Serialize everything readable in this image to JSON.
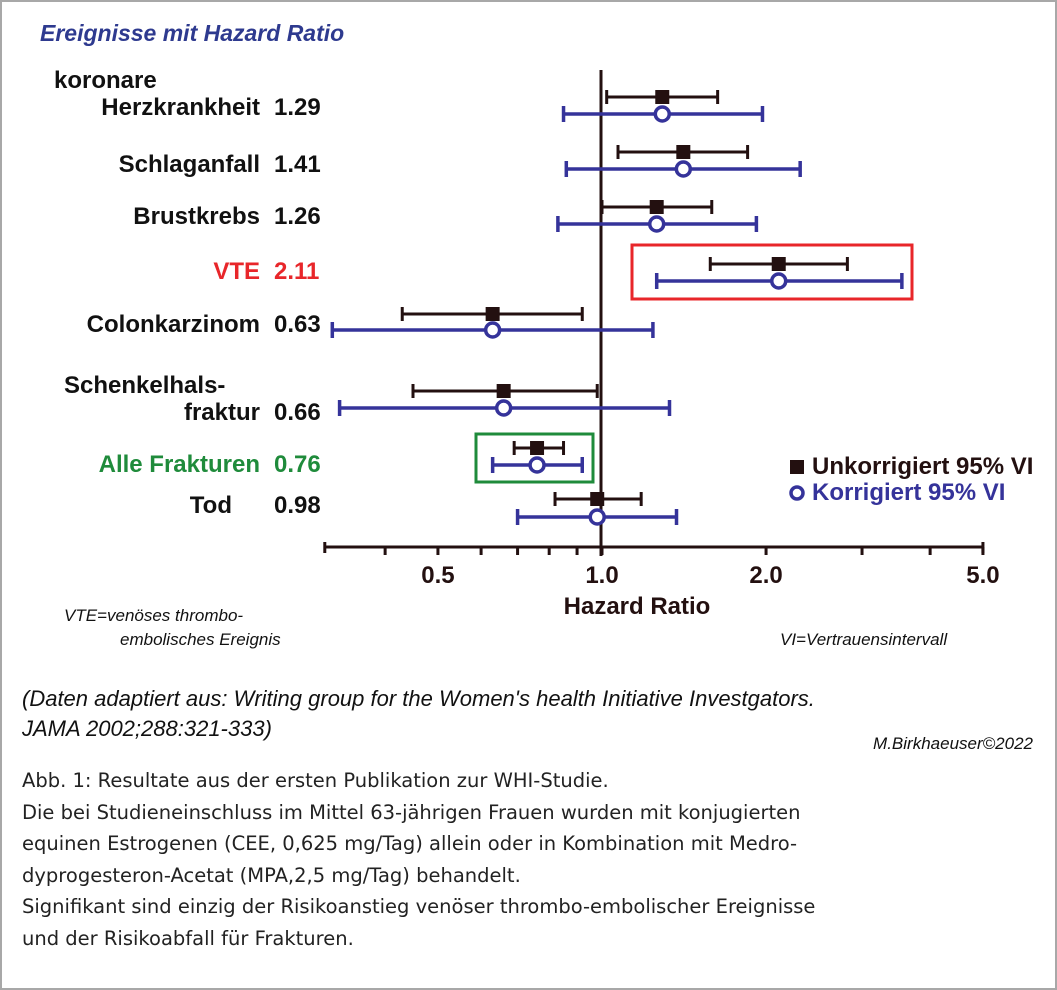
{
  "title": "Ereignisse mit Hazard Ratio",
  "colors": {
    "unadjusted": "#231010",
    "adjusted": "#35339a",
    "vte": "#e8262a",
    "fractures": "#1f8b3b",
    "text": "#111111"
  },
  "chart_data": {
    "type": "forest",
    "xlabel": "Hazard Ratio",
    "xscale": "log",
    "xlim": [
      0.31,
      5.0
    ],
    "xticks": [
      0.4,
      0.5,
      0.6,
      0.7,
      0.8,
      0.9,
      1.0,
      2.0,
      3.0,
      4.0,
      5.0
    ],
    "xtick_labels": [
      "0.5",
      "1.0",
      "2.0",
      "5.0"
    ],
    "xtick_label_values": [
      0.5,
      1.0,
      2.0,
      5.0
    ],
    "reference_line": 1.0,
    "legend": {
      "placement": "bottom-right",
      "unadjusted": "Unkorrigiert 95% VI",
      "adjusted": "Korrigiert 95% VI"
    },
    "rows": [
      {
        "label_lines": [
          "koronare",
          "Herzkrankheit"
        ],
        "hr_label": "1.29",
        "hr": 1.29,
        "ci_unadjusted": [
          1.02,
          1.63
        ],
        "ci_adjusted": [
          0.85,
          1.97
        ],
        "highlight": null
      },
      {
        "label_lines": [
          "Schlaganfall"
        ],
        "hr_label": "1.41",
        "hr": 1.41,
        "ci_unadjusted": [
          1.07,
          1.85
        ],
        "ci_adjusted": [
          0.86,
          2.31
        ],
        "highlight": null
      },
      {
        "label_lines": [
          "Brustkrebs"
        ],
        "hr_label": "1.26",
        "hr": 1.26,
        "ci_unadjusted": [
          1.0,
          1.59
        ],
        "ci_adjusted": [
          0.83,
          1.92
        ],
        "highlight": null
      },
      {
        "label_lines": [
          "VTE"
        ],
        "hr_label": "2.11",
        "hr": 2.11,
        "ci_unadjusted": [
          1.58,
          2.82
        ],
        "ci_adjusted": [
          1.26,
          3.55
        ],
        "highlight": "vte"
      },
      {
        "label_lines": [
          "Colonkarzinom"
        ],
        "hr_label": "0.63",
        "hr": 0.63,
        "ci_unadjusted": [
          0.43,
          0.92
        ],
        "ci_adjusted": [
          0.32,
          1.24
        ],
        "highlight": null
      },
      {
        "label_lines": [
          "Schenkelhals-",
          "fraktur"
        ],
        "hr_label": "0.66",
        "hr": 0.66,
        "ci_unadjusted": [
          0.45,
          0.98
        ],
        "ci_adjusted": [
          0.33,
          1.33
        ],
        "highlight": null
      },
      {
        "label_lines": [
          "Alle Frakturen"
        ],
        "hr_label": "0.76",
        "hr": 0.76,
        "ci_unadjusted": [
          0.69,
          0.85
        ],
        "ci_adjusted": [
          0.63,
          0.92
        ],
        "highlight": "fractures"
      },
      {
        "label_lines": [
          "Tod"
        ],
        "hr_label": "0.98",
        "hr": 0.98,
        "ci_unadjusted": [
          0.82,
          1.18
        ],
        "ci_adjusted": [
          0.7,
          1.37
        ],
        "highlight": null
      }
    ]
  },
  "notes": {
    "vte_line1": "VTE=venöses thrombo-",
    "vte_line2": "embolisches Ereignis",
    "vi": "VI=Vertrauensintervall"
  },
  "source": {
    "line1": "(Daten adaptiert aus: Writing group for the Women's health Initiative Investgators.",
    "line2": "JAMA 2002;288:321-333)"
  },
  "author": "M.Birkhaeuser©2022",
  "caption": [
    "Abb. 1: Resultate aus der ersten Publikation zur WHI-Studie.",
    "Die bei Studieneinschluss im Mittel 63-jährigen Frauen wurden mit konjugierten",
    "equinen Estrogenen (CEE, 0,625 mg/Tag) allein oder in Kombination mit Medro-",
    "dyprogesteron-Acetat (MPA,2,5 mg/Tag) behandelt.",
    "Signifikant sind einzig der Risikoanstieg venöser thrombo-embolischer Ereignisse",
    "und der Risikoabfall für Frakturen."
  ]
}
